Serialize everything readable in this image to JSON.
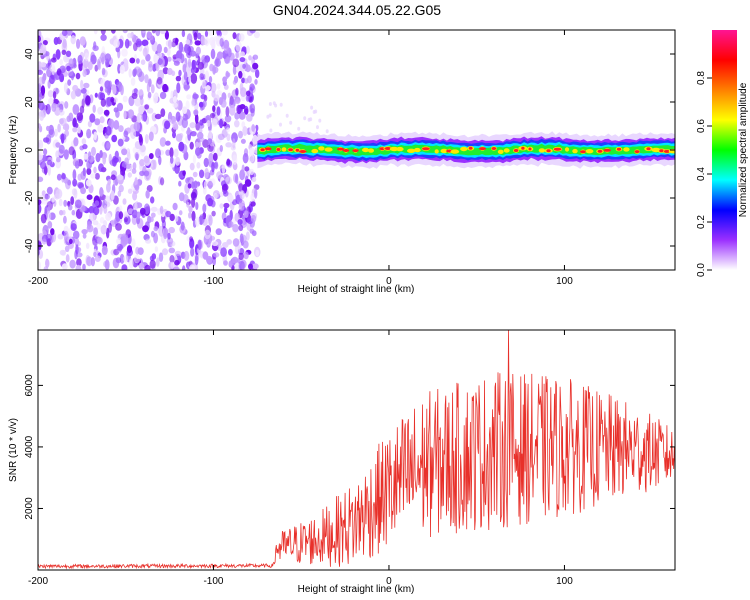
{
  "figure": {
    "title": "GN04.2024.344.05.22.G05"
  },
  "chart_data": [
    {
      "type": "heatmap",
      "xlabel": "Height of straight line (km)",
      "ylabel": "Frequency (Hz)",
      "xlim": [
        -200,
        163
      ],
      "ylim": [
        -50,
        50
      ],
      "x_ticks": [
        -200,
        -100,
        0,
        100
      ],
      "x_tick_labels": [
        "-200",
        "-100",
        "0",
        "100"
      ],
      "y_ticks": [
        40,
        20,
        0,
        -20,
        -40
      ],
      "y_tick_labels": [
        "40",
        "20",
        "0",
        "-20",
        "-40"
      ],
      "noise_region_x": [
        -200,
        -75
      ],
      "signal_region_x": [
        -75,
        163
      ],
      "signal_center_frequency": 0,
      "signal_band_halfwidth_hz": 3,
      "colorbar": {
        "label": "Normalized spectral amplitude",
        "range": [
          0,
          1
        ],
        "ticks": [
          0.0,
          0.2,
          0.4,
          0.6,
          0.8
        ],
        "tick_labels": [
          "0.0",
          "0.2",
          "0.4",
          "0.6",
          "0.8"
        ],
        "colors": [
          "#ffffff",
          "#9b30ff",
          "#0000ff",
          "#00ffff",
          "#00ff00",
          "#ffff00",
          "#ff8000",
          "#ff0000",
          "#ff1493"
        ]
      }
    },
    {
      "type": "line",
      "xlabel": "Height of straight line (km)",
      "ylabel": "SNR (10 * v/v)",
      "xlim": [
        -200,
        163
      ],
      "ylim": [
        0,
        7800
      ],
      "x_ticks": [
        -200,
        -100,
        0,
        100
      ],
      "x_tick_labels": [
        "-200",
        "-100",
        "0",
        "100"
      ],
      "y_ticks": [
        2000,
        4000,
        6000
      ],
      "y_tick_labels": [
        "2000",
        "4000",
        "6000"
      ],
      "series": [
        {
          "color": "#e8302a",
          "envelope": [
            {
              "x": -200,
              "base": 120,
              "amp": 60
            },
            {
              "x": -66,
              "base": 140,
              "amp": 60
            },
            {
              "x": -64,
              "base": 700,
              "amp": 500
            },
            {
              "x": -40,
              "base": 1000,
              "amp": 900
            },
            {
              "x": -20,
              "base": 1500,
              "amp": 1400
            },
            {
              "x": 0,
              "base": 2600,
              "amp": 2000
            },
            {
              "x": 20,
              "base": 3400,
              "amp": 2400
            },
            {
              "x": 60,
              "base": 3900,
              "amp": 2600
            },
            {
              "x": 100,
              "base": 4000,
              "amp": 2300
            },
            {
              "x": 140,
              "base": 3900,
              "amp": 1500
            },
            {
              "x": 163,
              "base": 3700,
              "amp": 900
            }
          ],
          "peak": {
            "x": 68,
            "y": 7800
          }
        }
      ]
    }
  ]
}
